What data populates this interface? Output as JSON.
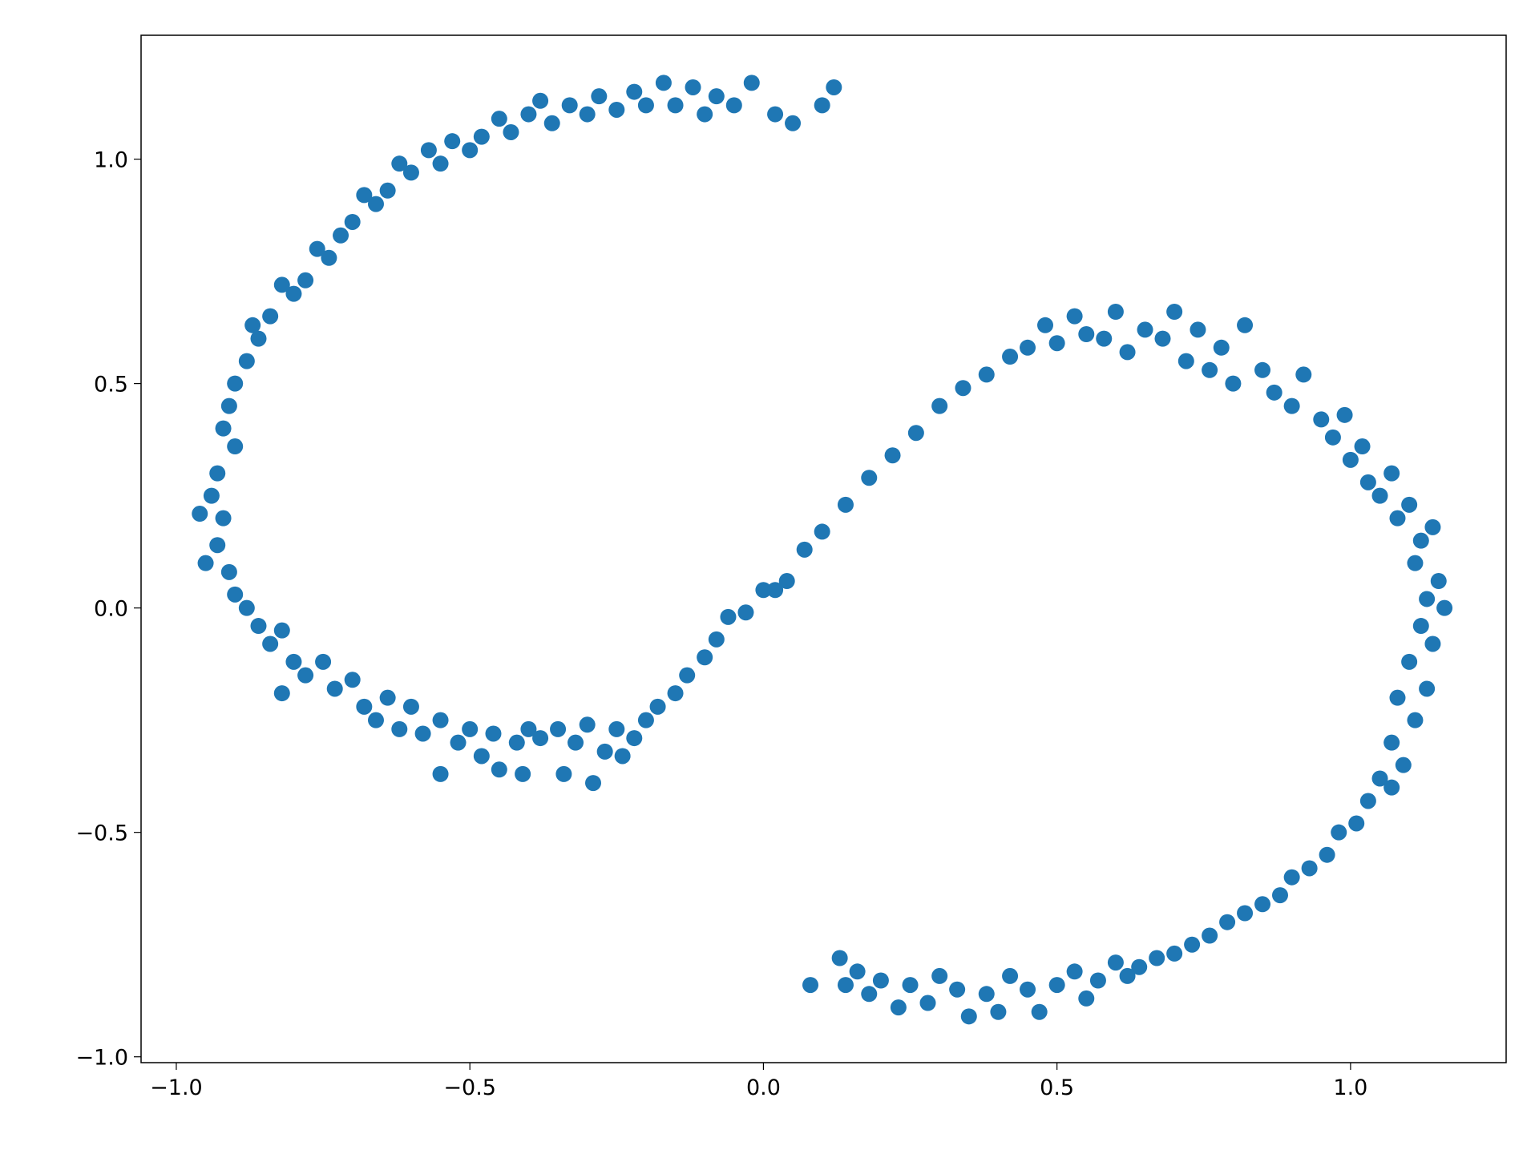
{
  "chart_data": {
    "type": "scatter",
    "color": "#1f77b4",
    "x": [
      0.12,
      0.1,
      0.05,
      0.02,
      -0.02,
      -0.05,
      -0.08,
      -0.1,
      -0.12,
      -0.15,
      -0.17,
      -0.2,
      -0.22,
      -0.25,
      -0.28,
      -0.3,
      -0.33,
      -0.36,
      -0.38,
      -0.4,
      -0.43,
      -0.45,
      -0.48,
      -0.5,
      -0.53,
      -0.55,
      -0.57,
      -0.6,
      -0.62,
      -0.64,
      -0.66,
      -0.68,
      -0.7,
      -0.72,
      -0.74,
      -0.76,
      -0.78,
      -0.8,
      -0.82,
      -0.84,
      -0.86,
      -0.87,
      -0.88,
      -0.9,
      -0.91,
      -0.92,
      -0.9,
      -0.93,
      -0.94,
      -0.92,
      -0.96,
      -0.93,
      -0.95,
      -0.91,
      -0.9,
      -0.88,
      -0.86,
      -0.84,
      -0.82,
      -0.8,
      -0.82,
      -0.78,
      -0.75,
      -0.73,
      -0.7,
      -0.68,
      -0.66,
      -0.64,
      -0.62,
      -0.6,
      -0.58,
      -0.55,
      -0.55,
      -0.52,
      -0.5,
      -0.48,
      -0.46,
      -0.45,
      -0.42,
      -0.4,
      -0.41,
      -0.38,
      -0.35,
      -0.34,
      -0.32,
      -0.3,
      -0.29,
      -0.27,
      -0.25,
      -0.24,
      -0.22,
      -0.2,
      -0.18,
      -0.15,
      -0.13,
      -0.1,
      -0.08,
      -0.06,
      -0.03,
      0.0,
      0.02,
      0.04,
      0.07,
      0.1,
      0.14,
      0.18,
      0.22,
      0.26,
      0.3,
      0.34,
      0.38,
      0.42,
      0.45,
      0.48,
      0.5,
      0.53,
      0.55,
      0.58,
      0.6,
      0.62,
      0.65,
      0.68,
      0.7,
      0.72,
      0.74,
      0.76,
      0.78,
      0.8,
      0.82,
      0.85,
      0.87,
      0.9,
      0.92,
      0.95,
      0.97,
      0.99,
      1.0,
      1.02,
      1.03,
      1.05,
      1.07,
      1.08,
      1.1,
      1.12,
      1.14,
      1.11,
      1.15,
      1.13,
      1.16,
      1.12,
      1.14,
      1.1,
      1.13,
      1.08,
      1.11,
      1.07,
      1.09,
      1.05,
      1.07,
      1.03,
      1.01,
      0.98,
      0.96,
      0.93,
      0.9,
      0.88,
      0.85,
      0.82,
      0.79,
      0.76,
      0.73,
      0.7,
      0.67,
      0.64,
      0.62,
      0.6,
      0.57,
      0.55,
      0.53,
      0.5,
      0.47,
      0.45,
      0.42,
      0.4,
      0.38,
      0.35,
      0.33,
      0.3,
      0.28,
      0.25,
      0.23,
      0.2,
      0.18,
      0.16,
      0.14,
      0.13,
      0.08
    ],
    "y": [
      1.16,
      1.12,
      1.08,
      1.1,
      1.17,
      1.12,
      1.14,
      1.1,
      1.16,
      1.12,
      1.17,
      1.12,
      1.15,
      1.11,
      1.14,
      1.1,
      1.12,
      1.08,
      1.13,
      1.1,
      1.06,
      1.09,
      1.05,
      1.02,
      1.04,
      0.99,
      1.02,
      0.97,
      0.99,
      0.93,
      0.9,
      0.92,
      0.86,
      0.83,
      0.78,
      0.8,
      0.73,
      0.7,
      0.72,
      0.65,
      0.6,
      0.63,
      0.55,
      0.5,
      0.45,
      0.4,
      0.36,
      0.3,
      0.25,
      0.2,
      0.21,
      0.14,
      0.1,
      0.08,
      0.03,
      0.0,
      -0.04,
      -0.08,
      -0.05,
      -0.12,
      -0.19,
      -0.15,
      -0.12,
      -0.18,
      -0.16,
      -0.22,
      -0.25,
      -0.2,
      -0.27,
      -0.22,
      -0.28,
      -0.25,
      -0.37,
      -0.3,
      -0.27,
      -0.33,
      -0.28,
      -0.36,
      -0.3,
      -0.27,
      -0.37,
      -0.29,
      -0.27,
      -0.37,
      -0.3,
      -0.26,
      -0.39,
      -0.32,
      -0.27,
      -0.33,
      -0.29,
      -0.25,
      -0.22,
      -0.19,
      -0.15,
      -0.11,
      -0.07,
      -0.02,
      -0.01,
      0.04,
      0.04,
      0.06,
      0.13,
      0.17,
      0.23,
      0.29,
      0.34,
      0.39,
      0.45,
      0.49,
      0.52,
      0.56,
      0.58,
      0.63,
      0.59,
      0.65,
      0.61,
      0.6,
      0.66,
      0.57,
      0.62,
      0.6,
      0.66,
      0.55,
      0.62,
      0.53,
      0.58,
      0.5,
      0.63,
      0.53,
      0.48,
      0.45,
      0.52,
      0.42,
      0.38,
      0.43,
      0.33,
      0.36,
      0.28,
      0.25,
      0.3,
      0.2,
      0.23,
      0.15,
      0.18,
      0.1,
      0.06,
      0.02,
      0.0,
      -0.04,
      -0.08,
      -0.12,
      -0.18,
      -0.2,
      -0.25,
      -0.3,
      -0.35,
      -0.38,
      -0.4,
      -0.43,
      -0.48,
      -0.5,
      -0.55,
      -0.58,
      -0.6,
      -0.64,
      -0.66,
      -0.68,
      -0.7,
      -0.73,
      -0.75,
      -0.77,
      -0.78,
      -0.8,
      -0.82,
      -0.79,
      -0.83,
      -0.87,
      -0.81,
      -0.84,
      -0.9,
      -0.85,
      -0.82,
      -0.9,
      -0.86,
      -0.91,
      -0.85,
      -0.82,
      -0.88,
      -0.84,
      -0.89,
      -0.83,
      -0.86,
      -0.81,
      -0.84,
      -0.78,
      -0.84
    ],
    "xlim": [
      -1.06,
      1.265
    ],
    "ylim": [
      -1.013,
      1.276
    ],
    "xticks": [
      {
        "value": -1.0,
        "label": "−1.0"
      },
      {
        "value": -0.5,
        "label": "−0.5"
      },
      {
        "value": 0.0,
        "label": "0.0"
      },
      0.5,
      {
        "value": 1.0,
        "label": "1.0"
      }
    ],
    "yticks": [
      {
        "value": -1.0,
        "label": "−1.0"
      },
      {
        "value": -0.5,
        "label": "−0.5"
      },
      {
        "value": 0.0,
        "label": "0.0"
      },
      0.5,
      {
        "value": 1.0,
        "label": "1.0"
      }
    ]
  }
}
